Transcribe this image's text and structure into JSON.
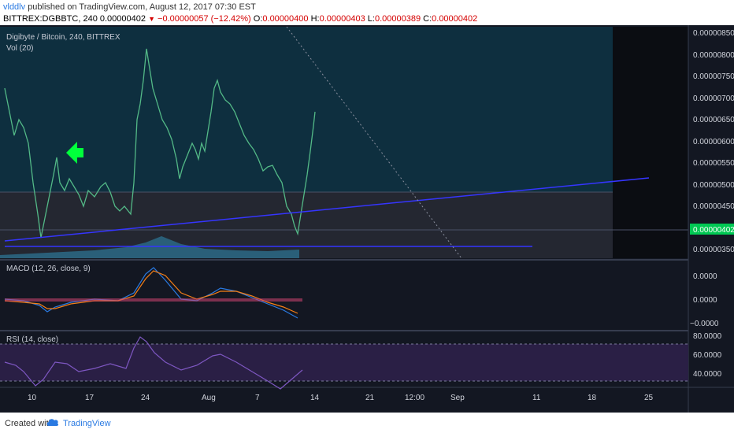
{
  "header": {
    "author": "vlddlv",
    "published": "published on TradingView.com, August 12, 2017 07:30 EST",
    "symbol_interval": "BITTREX:DGBBTC, 240",
    "last_price": "0.00000402",
    "change": "−0.00000057 (−12.42%)",
    "open_label": "O:",
    "open": "0.00000400",
    "high_label": "H:",
    "high": "0.00000403",
    "low_label": "L:",
    "low": "0.00000389",
    "close_label": "C:",
    "close": "0.00000402"
  },
  "main_pane": {
    "title": "Digibyte / Bitcoin, 240, BITTREX",
    "volume_label": "Vol (20)",
    "price_ticks": [
      "0.00000850",
      "0.00000800",
      "0.00000750",
      "0.00000700",
      "0.00000650",
      "0.00000600",
      "0.00000550",
      "0.00000500",
      "0.00000450",
      "0.00000400",
      "0.00000350"
    ],
    "current_price_badge": "0.00000402"
  },
  "macd_pane": {
    "title": "MACD (12, 26, close, 9)",
    "ticks": [
      "0.0000",
      "0.0000",
      "−0.0000"
    ]
  },
  "rsi_pane": {
    "title": "RSI (14, close)",
    "ticks": [
      "80.0000",
      "60.0000",
      "40.0000"
    ]
  },
  "time_axis": {
    "labels": [
      "10",
      "17",
      "24",
      "Aug",
      "7",
      "14",
      "21",
      "12:00",
      "Sep",
      "11",
      "18",
      "25"
    ]
  },
  "footer": {
    "created_with": "Created with",
    "brand": "TradingView"
  },
  "colors": {
    "background": "#131722",
    "up_candle": "#53b987",
    "down_candle": "#eb4d5c",
    "trendline": "#3535ff",
    "annotation_arrow": "#00ff3b",
    "price_badge": "#00c853",
    "macd_line": "#2a7ae2",
    "signal_line": "#f57f17",
    "rsi_line": "#7e57c2"
  },
  "icons": {
    "annotation": "left-arrow-icon",
    "logo": "tradingview-cloud-icon"
  }
}
